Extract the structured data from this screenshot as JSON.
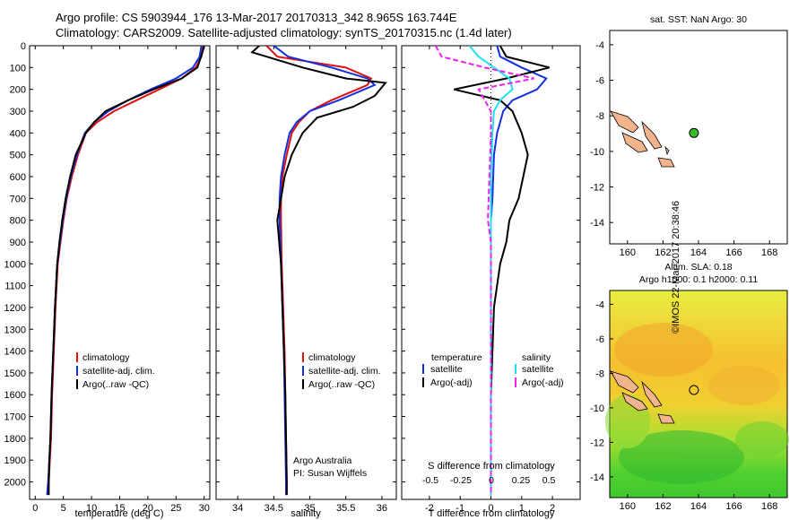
{
  "header": {
    "title1": "Argo profile: CS 5903944_176 13-Mar-2017 20170313_342 8.965S 163.744E",
    "title2": "Climatology: CARS2009. Satellite-adjusted climatology: synTS_20170315.nc (1.4d later)"
  },
  "colors": {
    "climatology": "#e01010",
    "satellite": "#1030e0",
    "argo": "#000000",
    "s_satellite": "#20e0f0",
    "s_argo": "#f020f0"
  },
  "chart_data": [
    {
      "id": "temperature",
      "type": "line",
      "xlabel": "temperature (deg C)",
      "ylabel": "",
      "xlim": [
        -1,
        31
      ],
      "ylim": [
        0,
        2080
      ],
      "xticks": [
        0,
        5,
        10,
        15,
        20,
        25,
        30
      ],
      "yticks": [
        0,
        100,
        200,
        300,
        400,
        500,
        600,
        700,
        800,
        900,
        1000,
        1100,
        1200,
        1300,
        1400,
        1500,
        1600,
        1700,
        1800,
        1900,
        2000
      ],
      "legend": [
        "climatology",
        "satellite-adj. clim.",
        "Argo(..raw -QC)"
      ],
      "series": [
        {
          "name": "climatology",
          "color": "#e01010",
          "x": [
            29.8,
            29.5,
            28.5,
            26,
            22,
            18,
            14,
            11,
            9,
            7.6,
            6.5,
            5.6,
            5.0,
            4.5,
            4.0,
            3.6,
            3.3,
            3.0,
            2.8,
            2.6,
            2.4,
            2.2
          ],
          "depth": [
            0,
            50,
            100,
            150,
            200,
            250,
            300,
            350,
            400,
            500,
            600,
            700,
            800,
            900,
            1000,
            1200,
            1400,
            1600,
            1800,
            1900,
            2000,
            2060
          ]
        },
        {
          "name": "satellite-adj. clim.",
          "color": "#1030e0",
          "x": [
            29.5,
            29.2,
            28,
            25,
            20.5,
            16.5,
            13,
            10.5,
            8.8,
            7.4,
            6.3,
            5.5,
            4.9,
            4.4,
            3.9,
            3.5,
            3.2,
            2.9,
            2.7,
            2.5,
            2.3,
            2.1
          ],
          "depth": [
            0,
            50,
            100,
            150,
            200,
            250,
            300,
            350,
            400,
            500,
            600,
            700,
            800,
            900,
            1000,
            1200,
            1400,
            1600,
            1800,
            1900,
            2000,
            2060
          ]
        },
        {
          "name": "Argo(..raw -QC)",
          "color": "#000000",
          "x": [
            30.0,
            29.7,
            28.8,
            26,
            21,
            16.5,
            12.5,
            10.5,
            9.0,
            7.2,
            6.2,
            5.4,
            4.8,
            4.3,
            3.9,
            3.5,
            3.2,
            2.9,
            2.7,
            2.5,
            2.4,
            2.4
          ],
          "depth": [
            0,
            30,
            100,
            150,
            200,
            250,
            300,
            350,
            400,
            500,
            600,
            700,
            800,
            900,
            1000,
            1200,
            1400,
            1600,
            1800,
            1900,
            2000,
            2060
          ]
        }
      ]
    },
    {
      "id": "salinity",
      "type": "line",
      "xlabel": "salinity",
      "xlim": [
        33.7,
        36.2
      ],
      "ylim": [
        0,
        2080
      ],
      "xticks": [
        34,
        34.5,
        35,
        35.5,
        36
      ],
      "legend": [
        "climatology",
        "satellite-adj. clim.",
        "Argo(..raw -QC)"
      ],
      "annotation": [
        "Argo Australia",
        "PI: Susan Wijffels"
      ],
      "series": [
        {
          "name": "climatology",
          "color": "#e01010",
          "x": [
            34.4,
            34.55,
            35.5,
            35.85,
            35.8,
            35.3,
            35.0,
            34.85,
            34.75,
            34.68,
            34.62,
            34.6,
            34.6,
            34.61,
            34.63,
            34.65,
            34.66,
            34.67,
            34.68,
            34.68
          ],
          "depth": [
            0,
            50,
            100,
            150,
            180,
            250,
            300,
            350,
            400,
            500,
            600,
            700,
            800,
            1000,
            1200,
            1400,
            1600,
            1800,
            2000,
            2060
          ]
        },
        {
          "name": "satellite-adj. clim.",
          "color": "#1030e0",
          "x": [
            34.5,
            34.7,
            35.3,
            35.8,
            35.9,
            35.4,
            35.0,
            34.82,
            34.72,
            34.65,
            34.6,
            34.58,
            34.58,
            34.6,
            34.62,
            34.64,
            34.65,
            34.66,
            34.67,
            34.67
          ],
          "depth": [
            0,
            50,
            100,
            150,
            180,
            250,
            300,
            350,
            400,
            500,
            600,
            700,
            800,
            1000,
            1200,
            1400,
            1600,
            1800,
            2000,
            2060
          ]
        },
        {
          "name": "Argo(..raw -QC)",
          "color": "#000000",
          "x": [
            34.3,
            34.2,
            34.9,
            35.5,
            36.05,
            35.9,
            35.6,
            35.1,
            34.9,
            34.75,
            34.65,
            34.6,
            34.55,
            34.6,
            34.62,
            34.64,
            34.66,
            34.67,
            34.68,
            34.68
          ],
          "depth": [
            0,
            30,
            100,
            150,
            170,
            230,
            280,
            330,
            400,
            500,
            600,
            700,
            800,
            1000,
            1200,
            1400,
            1600,
            1800,
            2000,
            2060
          ]
        }
      ]
    },
    {
      "id": "differences",
      "type": "line",
      "xlabel": "T difference from climatology",
      "x2label": "S difference from climatology",
      "xlim": [
        -2.9,
        2.9
      ],
      "ylim": [
        0,
        2080
      ],
      "xticks": [
        -2,
        -1,
        0,
        1,
        2
      ],
      "x2ticks": [
        "-0.5",
        "-0.25",
        "0",
        "0.25",
        "0.5"
      ],
      "legend_left_title": "temperature",
      "legend_right_title": "salinity",
      "legend": [
        "satellite",
        "Argo(-adj)",
        "satellite",
        "Argo(-adj)"
      ],
      "series": [
        {
          "name": "T satellite",
          "color": "#1030e0",
          "x": [
            0.2,
            0.3,
            1.0,
            1.8,
            1.5,
            0.7,
            0.4,
            0.2,
            0.1,
            0.05,
            0,
            0,
            0,
            0,
            0,
            0,
            0
          ],
          "depth": [
            0,
            50,
            100,
            150,
            200,
            250,
            300,
            400,
            500,
            700,
            800,
            1000,
            1200,
            1400,
            1600,
            1800,
            2060
          ]
        },
        {
          "name": "T Argo(-adj)",
          "color": "#000000",
          "x": [
            0.3,
            0.5,
            1.9,
            0.5,
            -1.2,
            0.3,
            0.7,
            1.0,
            1.2,
            0.9,
            0.6,
            0.5,
            0.3,
            0.1,
            0.05,
            0,
            0
          ],
          "depth": [
            0,
            50,
            100,
            150,
            200,
            250,
            300,
            400,
            500,
            700,
            800,
            900,
            1000,
            1200,
            1400,
            1600,
            2060
          ]
        },
        {
          "name": "S satellite",
          "color": "#20e0f0",
          "x": [
            -0.7,
            -0.4,
            0.1,
            0.6,
            0.7,
            0.3,
            0.1,
            0.05,
            0,
            0,
            0,
            0,
            0
          ],
          "depth": [
            0,
            50,
            100,
            150,
            200,
            250,
            300,
            400,
            600,
            800,
            1200,
            1600,
            2060
          ]
        },
        {
          "name": "S Argo(-adj)",
          "color": "#f020f0",
          "x": [
            -1.8,
            -1.6,
            -0.2,
            1.4,
            -0.4,
            -0.2,
            0,
            0,
            -0.1,
            0,
            0,
            0,
            0
          ],
          "depth": [
            0,
            50,
            100,
            150,
            200,
            250,
            300,
            400,
            800,
            900,
            1200,
            1600,
            2060
          ]
        }
      ]
    },
    {
      "id": "map-sst",
      "type": "scatter",
      "title": "sat. SST: NaN Argo: 30",
      "xlim": [
        159,
        169
      ],
      "ylim": [
        -15.2,
        -3.2
      ],
      "xticks": [
        160,
        162,
        164,
        166,
        168
      ],
      "yticks": [
        -4,
        -6,
        -8,
        -10,
        -12,
        -14
      ],
      "point": {
        "lon": 163.744,
        "lat": -8.965
      }
    },
    {
      "id": "map-sla",
      "type": "heatmap",
      "title1": "Altim. SLA: 0.18",
      "title2": "Argo h1000: 0.1 h2000: 0.11",
      "xlim": [
        159,
        169
      ],
      "ylim": [
        -15.2,
        -3.2
      ],
      "xticks": [
        160,
        162,
        164,
        166,
        168
      ],
      "yticks": [
        -4,
        -6,
        -8,
        -10,
        -12,
        -14
      ],
      "point": {
        "lon": 163.744,
        "lat": -8.965
      }
    }
  ],
  "footer": {
    "credit": "©IMOS 22-Mar-2017 20:38:46"
  }
}
